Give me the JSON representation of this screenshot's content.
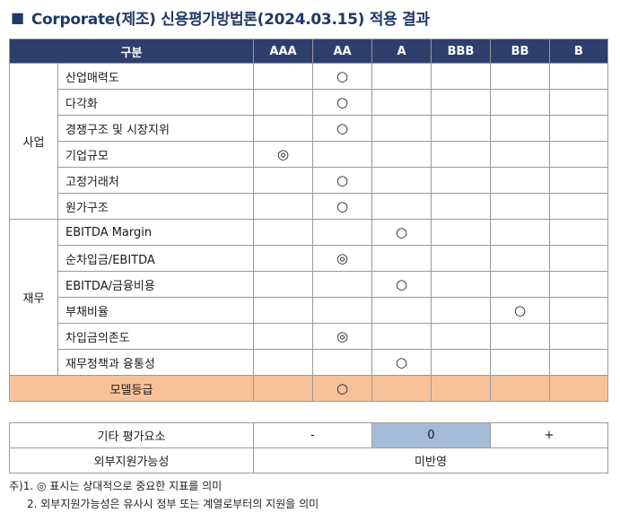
{
  "title": "Corporate(제조) 신용평가방법론(2024.03.15) 적용 결과",
  "title_marker": "■",
  "columns": [
    "구분",
    "AAA",
    "AA",
    "A",
    "BBB",
    "BB",
    "B"
  ],
  "symbols": {
    "circle": "○",
    "double_circle": "◎"
  },
  "categories": [
    {
      "label": "사업",
      "rows": [
        {
          "item": "산업매력도",
          "grade_col": 2,
          "mark": "○"
        },
        {
          "item": "다각화",
          "grade_col": 2,
          "mark": "○"
        },
        {
          "item": "경쟁구조 및 시장지위",
          "grade_col": 2,
          "mark": "○"
        },
        {
          "item": "기업규모",
          "grade_col": 1,
          "mark": "◎"
        },
        {
          "item": "고정거래처",
          "grade_col": 2,
          "mark": "○"
        },
        {
          "item": "원가구조",
          "grade_col": 2,
          "mark": "○"
        }
      ]
    },
    {
      "label": "재무",
      "rows": [
        {
          "item": "EBITDA Margin",
          "grade_col": 3,
          "mark": "○"
        },
        {
          "item": "순차입금/EBITDA",
          "grade_col": 2,
          "mark": "◎"
        },
        {
          "item": "EBITDA/금융비용",
          "grade_col": 3,
          "mark": "○"
        },
        {
          "item": "부채비율",
          "grade_col": 5,
          "mark": "○"
        },
        {
          "item": "차입금의존도",
          "grade_col": 2,
          "mark": "◎"
        },
        {
          "item": "재무정책과 융통성",
          "grade_col": 3,
          "mark": "○"
        }
      ]
    }
  ],
  "model_grade": {
    "label": "모델등급",
    "grade_col": 2,
    "mark": "○"
  },
  "other_factors": {
    "label": "기타 평가요소",
    "minus": "-",
    "zero": "0",
    "plus": "+"
  },
  "external_support": {
    "label": "외부지원가능성",
    "value": "미반영"
  },
  "notes": [
    "주)1. ◎ 표시는 상대적으로 중요한 지표를 의미",
    "2. 외부지원가능성은 유사시 정부 또는 계열로부터의 지원을 의미"
  ]
}
